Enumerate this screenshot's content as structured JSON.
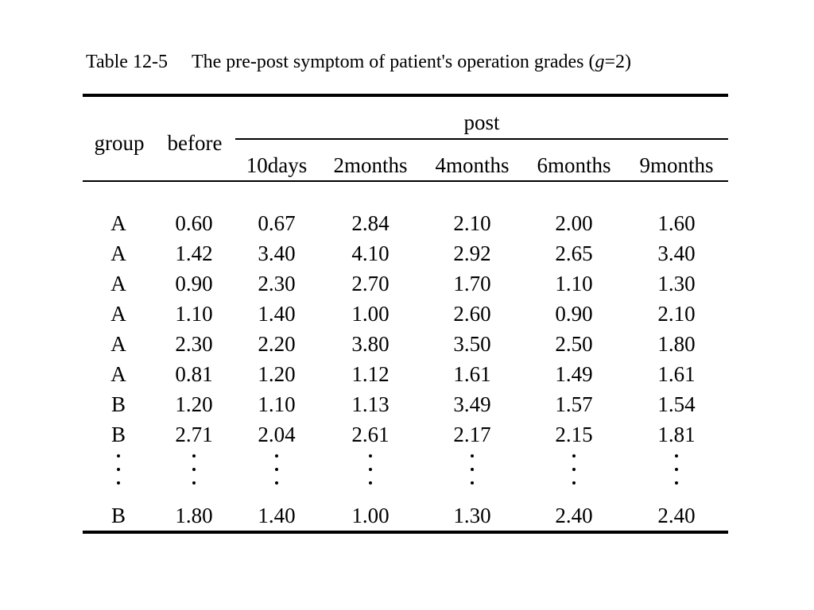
{
  "caption": {
    "label": "Table 12-5",
    "text_before_var": "The pre-post symptom of patient's operation grades (",
    "var": "g",
    "text_after_var": "=2)"
  },
  "table": {
    "header": {
      "group": "group",
      "before": "before",
      "post": "post",
      "post_columns": [
        "10days",
        "2months",
        "4months",
        "6months",
        "9months"
      ]
    },
    "rows": [
      [
        "A",
        "0.60",
        "0.67",
        "2.84",
        "2.10",
        "2.00",
        "1.60"
      ],
      [
        "A",
        "1.42",
        "3.40",
        "4.10",
        "2.92",
        "2.65",
        "3.40"
      ],
      [
        "A",
        "0.90",
        "2.30",
        "2.70",
        "1.70",
        "1.10",
        "1.30"
      ],
      [
        "A",
        "1.10",
        "1.40",
        "1.00",
        "2.60",
        "0.90",
        "2.10"
      ],
      [
        "A",
        "2.30",
        "2.20",
        "3.80",
        "3.50",
        "2.50",
        "1.80"
      ],
      [
        "A",
        "0.81",
        "1.20",
        "1.12",
        "1.61",
        "1.49",
        "1.61"
      ],
      [
        "B",
        "1.20",
        "1.10",
        "1.13",
        "3.49",
        "1.57",
        "1.54"
      ],
      [
        "B",
        "2.71",
        "2.04",
        "2.61",
        "2.17",
        "2.15",
        "1.81"
      ]
    ],
    "ellipsis_row": true,
    "last_row": [
      "B",
      "1.80",
      "1.40",
      "1.00",
      "1.30",
      "2.40",
      "2.40"
    ]
  }
}
